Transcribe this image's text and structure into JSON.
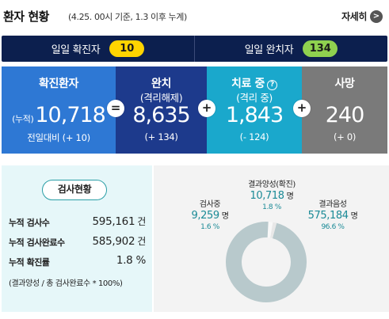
{
  "header": {
    "title": "환자 현황",
    "subtitle": "(4.25. 00시 기준, 1.3 이후 누계)",
    "detail_label": "자세히",
    "detail_icon": "chevron-right-icon"
  },
  "daily": {
    "confirmed_label": "일일 확진자",
    "confirmed_value": "10",
    "released_label": "일일 완치자",
    "released_value": "134"
  },
  "stats": {
    "confirmed": {
      "title": "확진환자",
      "prefix": "(누적)",
      "value": "10,718",
      "foot": "전일대비 (+ 10)"
    },
    "released": {
      "title": "완치",
      "sub": "(격리해제)",
      "value": "8,635",
      "foot": "(+ 134)"
    },
    "treating": {
      "title": "치료 중",
      "sub": "(격리 중)",
      "value": "1,843",
      "foot": "(- 124)",
      "help_icon": "question-icon"
    },
    "deaths": {
      "title": "사망",
      "value": "240",
      "foot": "(+ 0)"
    },
    "operators": [
      "=",
      "+",
      "+"
    ]
  },
  "tests": {
    "badge": "검사현황",
    "rows": [
      {
        "label": "누적 검사수",
        "value": "595,161",
        "unit": "건"
      },
      {
        "label": "누적 검사완료수",
        "value": "585,902",
        "unit": "건"
      },
      {
        "label": "누적 확진률",
        "value": "1.8 %",
        "unit": ""
      }
    ],
    "note": "(결과양성 / 총 검사완료수 * 100%)"
  },
  "chart_data": {
    "type": "pie",
    "variant": "donut",
    "title": "",
    "slices": [
      {
        "name": "결과음성",
        "value": 575184,
        "percent": 96.6,
        "unit": "명",
        "color": "#b8c9cc"
      },
      {
        "name": "검사중",
        "value": 9259,
        "percent": 1.6,
        "unit": "명",
        "color": "#e8e8e8"
      },
      {
        "name": "결과양성(확진)",
        "value": 10718,
        "percent": 1.8,
        "unit": "명",
        "color": "#f8f8f8"
      }
    ],
    "labels": {
      "positive": {
        "title": "결과양성(확진)",
        "value": "10,718",
        "unit": "명",
        "percent": "1.8 %"
      },
      "testing": {
        "title": "검사중",
        "value": "9,259",
        "unit": "명",
        "percent": "1.6 %"
      },
      "negative": {
        "title": "결과음성",
        "value": "575,184",
        "unit": "명",
        "percent": "96.6 %"
      }
    }
  },
  "colors": {
    "navy": "#0c1f4e",
    "confirmed_blue": "#2e78d4",
    "released_navy": "#1d3a8c",
    "treating_teal": "#1aa8cc",
    "deaths_gray": "#7a7a7a",
    "pill_yellow": "#ffd400",
    "pill_green": "#8fd14f",
    "accent_teal": "#1a8a96"
  }
}
